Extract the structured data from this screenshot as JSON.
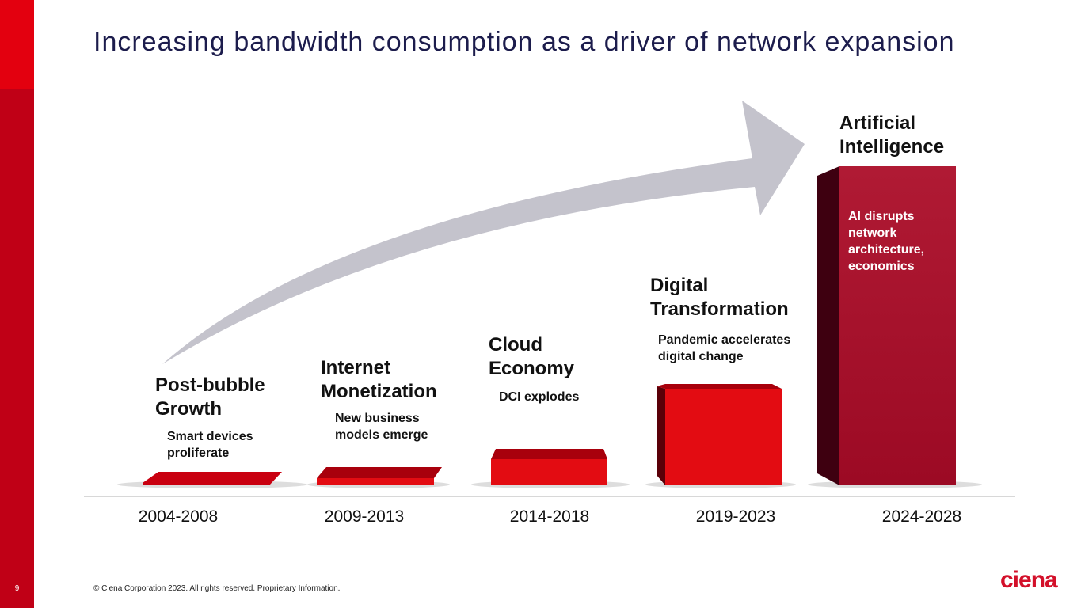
{
  "title": "Increasing bandwidth consumption as a driver of network expansion",
  "stages": [
    {
      "heading": "Post-bubble Growth",
      "description": "Smart devices proliferate",
      "period": "2004-2008"
    },
    {
      "heading": "Internet Monetization",
      "description": "New business models emerge",
      "period": "2009-2013"
    },
    {
      "heading": "Cloud Economy",
      "description": "DCI explodes",
      "period": "2014-2018"
    },
    {
      "heading": "Digital Transformation",
      "description": "Pandemic accelerates digital change",
      "period": "2019-2023"
    },
    {
      "heading": "Artificial Intelligence",
      "description": "AI disrupts network architecture, economics",
      "period": "2024-2028"
    }
  ],
  "footer": {
    "page_number": "9",
    "copyright": "© Ciena Corporation 2023. All rights reserved. Proprietary Information.",
    "logo": "ciena"
  }
}
